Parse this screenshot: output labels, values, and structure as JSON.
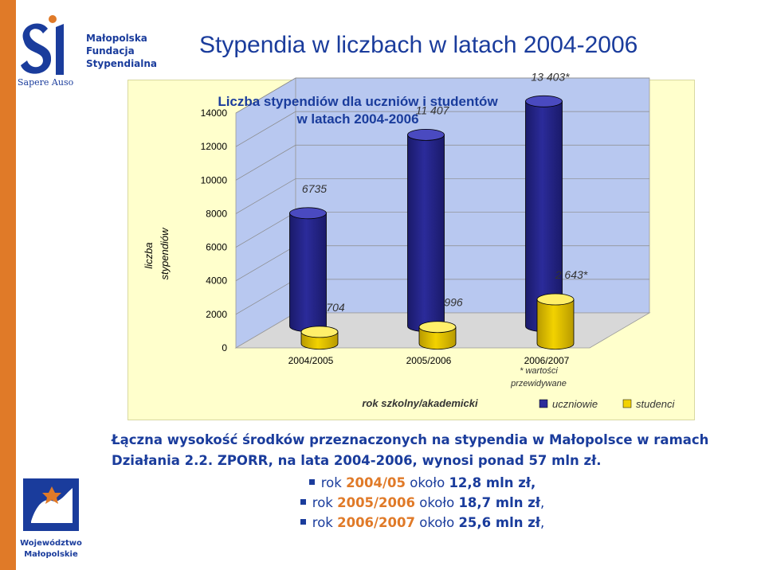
{
  "slide": {
    "title": "Stypendia w liczbach w latach 2004-2006"
  },
  "logo_top": {
    "line1": "Małopolska",
    "line2": "Fundacja",
    "line3": "Stypendialna",
    "motto": "Sapere Auso"
  },
  "logo_bottom": {
    "line1": "Województwo",
    "line2": "Małopolskie"
  },
  "colors": {
    "orange": "#e07a28",
    "navy": "#1a3c9c",
    "chart_bg": "#ffffcc",
    "wall": "#b8c8f0",
    "uczniowie": "#2b2b9a",
    "studenci": "#f2d200"
  },
  "chart_data": {
    "type": "bar",
    "title": "Liczba stypendiów dla uczniów i studentów w latach 2004-2006",
    "title_line1": "Liczba stypendiów dla uczniów i studentów",
    "title_line2": "w latach 2004-2006",
    "ylabel": "liczba stypendiów",
    "ylabel_line1": "liczba",
    "ylabel_line2": "stypendiów",
    "xlabel": "rok szkolny/akademicki",
    "ylim": [
      0,
      14000
    ],
    "yticks": [
      "0",
      "2000",
      "4000",
      "6000",
      "8000",
      "10000",
      "12000",
      "14000"
    ],
    "categories": [
      "2004/2005",
      "2005/2006",
      "2006/2007"
    ],
    "category_notes": [
      "",
      "",
      "* wartości przewidywane"
    ],
    "category_note_line1": "* wartości",
    "category_note_line2": "przewidywane",
    "grid": true,
    "legend_position": "bottom-right",
    "series": [
      {
        "name": "uczniowie",
        "values": [
          6735,
          11407,
          13403
        ],
        "labels": [
          "6735",
          "11 407",
          "13 403*"
        ]
      },
      {
        "name": "studenci",
        "values": [
          704,
          996,
          2643
        ],
        "labels": [
          "704",
          "996",
          "2 643*"
        ]
      }
    ]
  },
  "summary": {
    "line1": "Łączna wysokość środków przeznaczonych na stypendia w Małopolsce w ramach",
    "line2": "Działania 2.2. ZPORR, na lata 2004-2006, wynosi ponad 57 mln zł.",
    "items": [
      {
        "prefix": "rok",
        "year": "2004/05",
        "mid": "około",
        "amount": "12,8 mln zł,",
        "trail": ""
      },
      {
        "prefix": "rok",
        "year": "2005/2006",
        "mid": "około",
        "amount": "18,7 mln zł",
        "trail": ","
      },
      {
        "prefix": "rok",
        "year": "2006/2007",
        "mid": "około",
        "amount": "25,6 mln zł",
        "trail": ","
      }
    ]
  }
}
